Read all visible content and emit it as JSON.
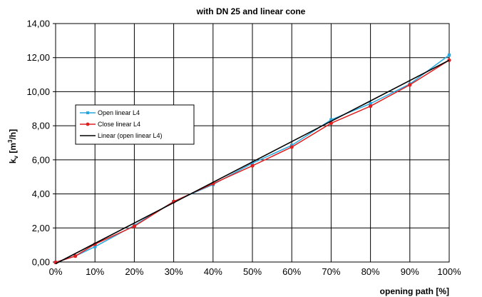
{
  "chart_data": {
    "type": "line",
    "title": "with DN 25 and linear cone",
    "xlabel": "opening path [%]",
    "ylabel": {
      "k": "k",
      "sub": "v",
      "unit_pre": " [m",
      "sup": "3",
      "unit_post": "/h]"
    },
    "xlim": [
      0,
      100
    ],
    "ylim": [
      0,
      14
    ],
    "x_ticks": [
      0,
      10,
      20,
      30,
      40,
      50,
      60,
      70,
      80,
      90,
      100
    ],
    "x_tick_labels": [
      "0%",
      "10%",
      "20%",
      "30%",
      "40%",
      "50%",
      "60%",
      "70%",
      "80%",
      "90%",
      "100%"
    ],
    "y_ticks": [
      0,
      2,
      4,
      6,
      8,
      10,
      12,
      14
    ],
    "y_tick_labels": [
      "0,00",
      "2,00",
      "4,00",
      "6,00",
      "8,00",
      "10,00",
      "12,00",
      "14,00"
    ],
    "grid": true,
    "legend_position": "upper-left",
    "series": [
      {
        "name": "Open linear L4",
        "color": "#29a8e0",
        "marker": "square",
        "x": [
          0,
          5,
          10,
          20,
          30,
          40,
          50,
          60,
          70,
          80,
          90,
          100
        ],
        "y": [
          -0.02,
          0.35,
          0.9,
          2.15,
          3.55,
          4.55,
          5.8,
          6.85,
          8.35,
          9.3,
          10.45,
          12.15
        ]
      },
      {
        "name": "Close linear L4",
        "color": "#e02020",
        "marker": "diamond",
        "x": [
          0,
          5,
          10,
          20,
          30,
          40,
          50,
          60,
          70,
          80,
          90,
          100
        ],
        "y": [
          -0.02,
          0.35,
          1.05,
          2.1,
          3.55,
          4.6,
          5.65,
          6.75,
          8.15,
          9.15,
          10.4,
          11.85
        ]
      },
      {
        "name": "Linear (open linear L4)",
        "color": "#000000",
        "marker": "none",
        "x": [
          0,
          100
        ],
        "y": [
          -0.1,
          11.85
        ]
      }
    ]
  }
}
